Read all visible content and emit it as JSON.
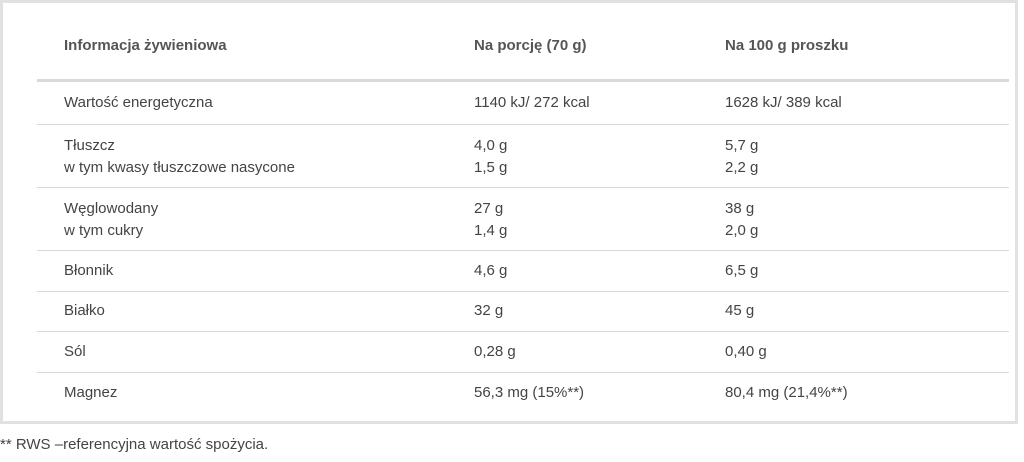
{
  "table": {
    "headers": [
      "Informacja żywieniowa",
      "Na porcję (70 g)",
      "Na 100 g proszku"
    ],
    "rows": [
      {
        "c1": [
          "Wartość energetyczna"
        ],
        "c2": [
          "1140 kJ/ 272 kcal"
        ],
        "c3": [
          "1628 kJ/ 389 kcal"
        ]
      },
      {
        "c1": [
          "Tłuszcz",
          "w tym kwasy tłuszczowe nasycone"
        ],
        "c2": [
          "4,0 g",
          "1,5 g"
        ],
        "c3": [
          "5,7 g",
          "2,2 g"
        ]
      },
      {
        "c1": [
          "Węglowodany",
          "w tym cukry"
        ],
        "c2": [
          "27 g",
          "1,4 g"
        ],
        "c3": [
          "38 g",
          "2,0 g"
        ]
      },
      {
        "c1": [
          "Błonnik"
        ],
        "c2": [
          "4,6 g"
        ],
        "c3": [
          "6,5 g"
        ]
      },
      {
        "c1": [
          "Białko"
        ],
        "c2": [
          "32 g"
        ],
        "c3": [
          "45 g"
        ]
      },
      {
        "c1": [
          "Sól"
        ],
        "c2": [
          "0,28 g"
        ],
        "c3": [
          "0,40 g"
        ]
      },
      {
        "c1": [
          "Magnez"
        ],
        "c2": [
          "56,3 mg (15%**)"
        ],
        "c3": [
          "80,4 mg (21,4%**)"
        ]
      }
    ]
  },
  "footnote": "** RWS –referencyjna wartość spożycia."
}
